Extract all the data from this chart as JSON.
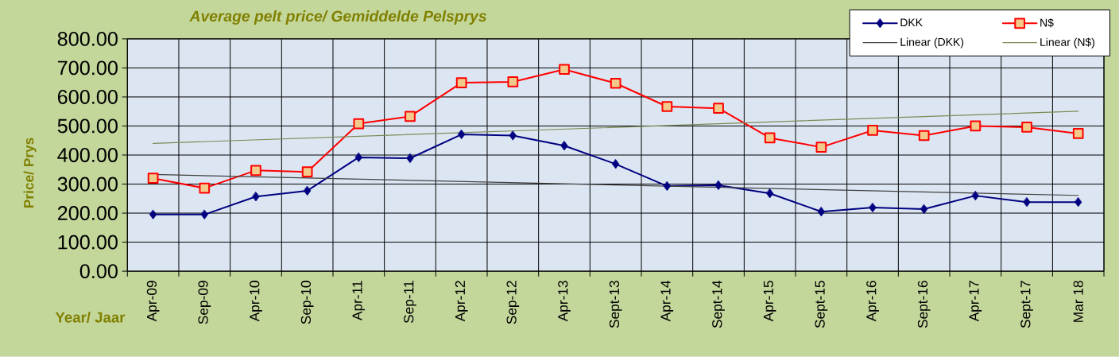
{
  "chart_data": {
    "type": "line",
    "title": "Average pelt price/ Gemiddelde Pelsprys",
    "xlabel": "Year/ Jaar",
    "ylabel": "Price/ Prys",
    "categories": [
      "Apr-09",
      "Sep-09",
      "Apr-10",
      "Sep-10",
      "Apr-11",
      "Sep-11",
      "Apr-12",
      "Sep-12",
      "Apr-13",
      "Sept-13",
      "Apr-14",
      "Sept-14",
      "Apr-15",
      "Sept-15",
      "Apr-16",
      "Sept-16",
      "Apr-17",
      "Sept-17",
      "Mar 18"
    ],
    "ylim": [
      0,
      800
    ],
    "yticks": [
      {
        "value": 0,
        "label": "0.00"
      },
      {
        "value": 100,
        "label": "100.00"
      },
      {
        "value": 200,
        "label": "200.00"
      },
      {
        "value": 300,
        "label": "300.00"
      },
      {
        "value": 400,
        "label": "400.00"
      },
      {
        "value": 500,
        "label": "500.00"
      },
      {
        "value": 600,
        "label": "600.00"
      },
      {
        "value": 700,
        "label": "700.00"
      },
      {
        "value": 800,
        "label": "800.00"
      }
    ],
    "grid": true,
    "legend": "top right",
    "line_style": "solid",
    "series": [
      {
        "name": "DKK",
        "color": "#000080",
        "marker": "diamond",
        "values": [
          195,
          195,
          257,
          277,
          392,
          389,
          471,
          467,
          432,
          369,
          293,
          296,
          268,
          205,
          219,
          214,
          260,
          238,
          238
        ]
      },
      {
        "name": "N$",
        "color": "#ff0000",
        "marker": "square",
        "values": [
          320,
          286,
          347,
          342,
          508,
          533,
          649,
          652,
          695,
          647,
          567,
          561,
          459,
          427,
          485,
          467,
          500,
          496,
          474
        ]
      },
      {
        "name": "Linear (DKK)",
        "color": "#404040",
        "marker": "none",
        "x": [
          "Apr-09",
          "Mar 18"
        ],
        "values": [
          333,
          261
        ]
      },
      {
        "name": "Linear (N$)",
        "color": "#7b8a55",
        "marker": "none",
        "x": [
          "Apr-09",
          "Mar 18"
        ],
        "values": [
          440,
          551
        ]
      }
    ]
  }
}
